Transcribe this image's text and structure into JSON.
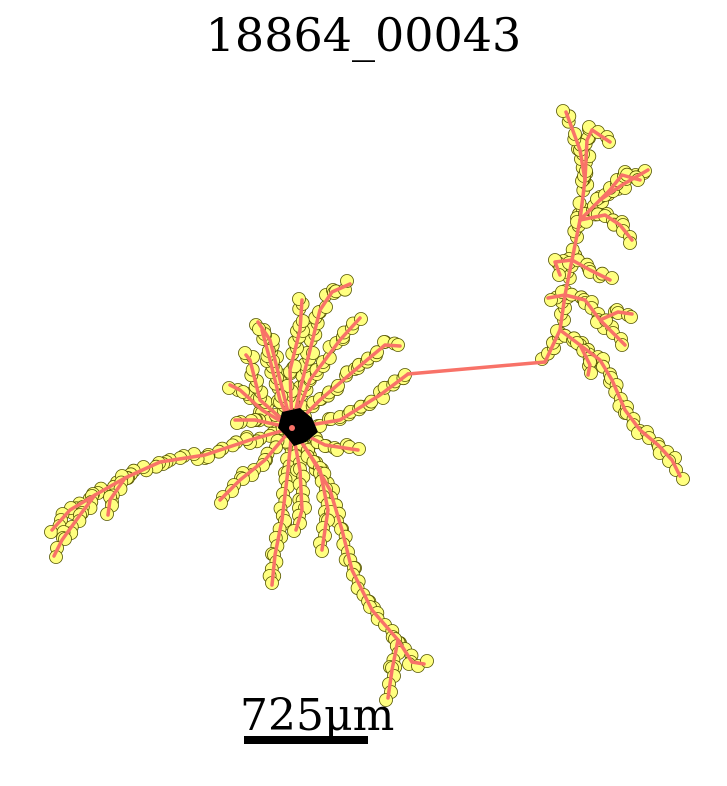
{
  "figure": {
    "title": "18864_00043",
    "scale_label": "725μm"
  },
  "colors": {
    "branch": "#f87268",
    "node_fill": "#ffff80",
    "node_stroke": "#555500",
    "soma": "#000000"
  }
}
